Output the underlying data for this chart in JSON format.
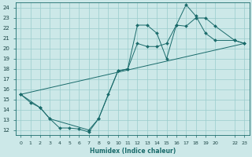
{
  "xlabel": "Humidex (Indice chaleur)",
  "xlim": [
    -0.5,
    23.5
  ],
  "ylim": [
    11.5,
    24.5
  ],
  "xticks": [
    0,
    1,
    2,
    3,
    4,
    5,
    6,
    7,
    8,
    9,
    10,
    11,
    12,
    13,
    14,
    15,
    16,
    17,
    18,
    19,
    20,
    22,
    23
  ],
  "yticks": [
    12,
    13,
    14,
    15,
    16,
    17,
    18,
    19,
    20,
    21,
    22,
    23,
    24
  ],
  "background_color": "#cce8e8",
  "grid_color": "#99cccc",
  "line_color": "#1a6b6b",
  "line1_x": [
    0,
    1,
    2,
    3,
    4,
    5,
    6,
    7,
    8,
    9,
    10,
    11,
    12,
    13,
    14,
    15,
    16,
    17,
    18,
    19,
    20,
    22,
    23
  ],
  "line1_y": [
    15.5,
    14.7,
    14.2,
    13.1,
    12.2,
    12.2,
    12.1,
    11.8,
    13.1,
    15.5,
    17.8,
    18.0,
    20.5,
    20.2,
    20.2,
    20.5,
    22.3,
    22.2,
    23.0,
    23.0,
    22.2,
    20.8,
    20.5
  ],
  "line2_x": [
    0,
    2,
    3,
    7,
    8,
    10,
    11,
    12,
    13,
    14,
    15,
    16,
    17,
    18,
    19,
    20,
    22,
    23
  ],
  "line2_y": [
    15.5,
    14.2,
    13.1,
    12.0,
    13.1,
    17.8,
    18.0,
    22.3,
    22.3,
    21.5,
    19.0,
    22.3,
    24.3,
    23.2,
    21.5,
    20.8,
    20.8,
    20.5
  ],
  "line3_x": [
    0,
    23
  ],
  "line3_y": [
    15.5,
    20.5
  ]
}
